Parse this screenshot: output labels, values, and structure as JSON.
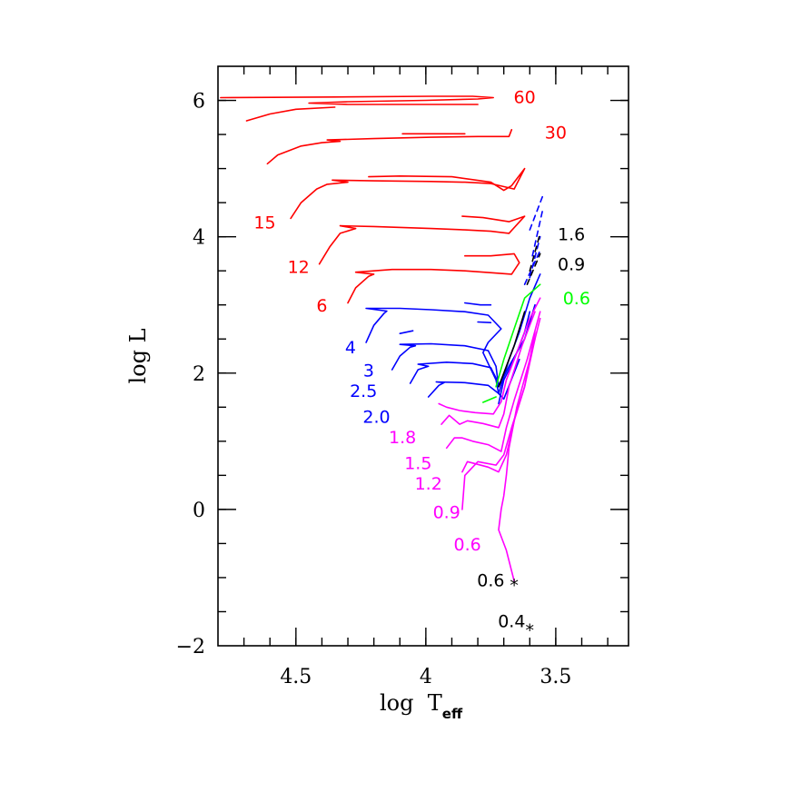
{
  "chart_data": {
    "type": "line",
    "title": "",
    "xlabel": {
      "main": "log  T",
      "sub": "eff"
    },
    "ylabel": "log  L",
    "xlim": [
      4.8,
      3.22
    ],
    "ylim": [
      -2,
      6.5
    ],
    "x_ticks": [
      {
        "value": 4.5,
        "label": "4.5"
      },
      {
        "value": 4.0,
        "label": "4"
      },
      {
        "value": 3.5,
        "label": "3.5"
      }
    ],
    "y_ticks": [
      {
        "value": 6,
        "label": "6"
      },
      {
        "value": 4,
        "label": "4"
      },
      {
        "value": 2,
        "label": "2"
      },
      {
        "value": 0,
        "label": "0"
      },
      {
        "value": -2,
        "label": "−2"
      }
    ],
    "x_minor_step": 0.1,
    "y_minor_step": 0.5,
    "grid": false,
    "colors": {
      "red": "#ff0000",
      "blue": "#0000ff",
      "magenta": "#ff00ff",
      "green": "#00ff00",
      "black": "#000000"
    },
    "series": [
      {
        "color": "red",
        "points": [
          [
            4.79,
            6.04
          ],
          [
            4.35,
            6.05
          ],
          [
            3.98,
            6.06
          ],
          [
            3.82,
            6.06
          ],
          [
            3.74,
            6.04
          ],
          [
            3.8,
            6.02
          ],
          [
            4.0,
            6.0
          ],
          [
            4.3,
            5.98
          ],
          [
            4.45,
            5.96
          ],
          [
            4.3,
            5.94
          ],
          [
            3.98,
            5.94
          ],
          [
            3.8,
            5.94
          ]
        ]
      },
      {
        "color": "red",
        "points": [
          [
            4.69,
            5.7
          ],
          [
            4.6,
            5.8
          ],
          [
            4.5,
            5.87
          ],
          [
            4.35,
            5.9
          ]
        ]
      },
      {
        "color": "red",
        "points": [
          [
            4.61,
            5.07
          ],
          [
            4.57,
            5.2
          ],
          [
            4.48,
            5.33
          ],
          [
            4.4,
            5.38
          ],
          [
            4.33,
            5.4
          ],
          [
            4.38,
            5.42
          ],
          [
            4.2,
            5.44
          ],
          [
            3.98,
            5.46
          ],
          [
            3.8,
            5.47
          ],
          [
            3.68,
            5.47
          ],
          [
            3.67,
            5.57
          ]
        ]
      },
      {
        "color": "red",
        "points": [
          [
            4.09,
            5.51
          ],
          [
            3.92,
            5.51
          ],
          [
            3.85,
            5.51
          ]
        ]
      },
      {
        "color": "red",
        "points": [
          [
            4.52,
            4.27
          ],
          [
            4.48,
            4.5
          ],
          [
            4.42,
            4.7
          ],
          [
            4.38,
            4.77
          ],
          [
            4.3,
            4.8
          ],
          [
            4.36,
            4.83
          ],
          [
            4.2,
            4.82
          ],
          [
            3.98,
            4.81
          ],
          [
            3.85,
            4.8
          ],
          [
            3.75,
            4.78
          ],
          [
            3.66,
            4.7
          ],
          [
            3.62,
            5.0
          ],
          [
            3.67,
            4.75
          ],
          [
            3.7,
            4.68
          ],
          [
            3.75,
            4.8
          ],
          [
            3.9,
            4.88
          ],
          [
            4.1,
            4.89
          ],
          [
            4.22,
            4.88
          ]
        ]
      },
      {
        "color": "red",
        "points": [
          [
            4.41,
            3.6
          ],
          [
            4.37,
            3.85
          ],
          [
            4.33,
            4.05
          ],
          [
            4.27,
            4.12
          ],
          [
            4.33,
            4.16
          ],
          [
            4.2,
            4.15
          ],
          [
            3.98,
            4.12
          ],
          [
            3.85,
            4.1
          ],
          [
            3.75,
            4.08
          ],
          [
            3.68,
            4.05
          ],
          [
            3.62,
            4.3
          ],
          [
            3.68,
            4.22
          ],
          [
            3.78,
            4.28
          ],
          [
            3.86,
            4.3
          ]
        ]
      },
      {
        "color": "red",
        "points": [
          [
            4.3,
            3.03
          ],
          [
            4.27,
            3.25
          ],
          [
            4.22,
            3.42
          ],
          [
            4.2,
            3.45
          ],
          [
            4.27,
            3.48
          ],
          [
            4.13,
            3.52
          ],
          [
            3.98,
            3.52
          ],
          [
            3.85,
            3.5
          ],
          [
            3.74,
            3.47
          ],
          [
            3.67,
            3.45
          ],
          [
            3.64,
            3.62
          ],
          [
            3.66,
            3.75
          ],
          [
            3.75,
            3.72
          ],
          [
            3.85,
            3.72
          ]
        ]
      },
      {
        "color": "blue",
        "points": [
          [
            4.23,
            2.45
          ],
          [
            4.2,
            2.7
          ],
          [
            4.16,
            2.88
          ],
          [
            4.15,
            2.91
          ],
          [
            4.23,
            2.95
          ],
          [
            4.1,
            2.95
          ],
          [
            3.98,
            2.93
          ],
          [
            3.85,
            2.9
          ],
          [
            3.76,
            2.85
          ],
          [
            3.71,
            2.65
          ],
          [
            3.76,
            2.45
          ],
          [
            3.78,
            2.3
          ],
          [
            3.73,
            1.9
          ],
          [
            3.72,
            1.7
          ],
          [
            3.68,
            2.2
          ],
          [
            3.64,
            2.6
          ],
          [
            3.6,
            3.1
          ],
          [
            3.56,
            3.45
          ]
        ]
      },
      {
        "color": "blue",
        "points": [
          [
            3.85,
            3.03
          ],
          [
            3.79,
            3.0
          ],
          [
            3.75,
            3.0
          ]
        ]
      },
      {
        "color": "blue",
        "points": [
          [
            3.8,
            2.75
          ],
          [
            3.75,
            2.74
          ]
        ]
      },
      {
        "color": "blue",
        "points": [
          [
            4.13,
            2.05
          ],
          [
            4.1,
            2.25
          ],
          [
            4.06,
            2.38
          ],
          [
            4.04,
            2.4
          ],
          [
            4.1,
            2.42
          ],
          [
            3.98,
            2.43
          ],
          [
            3.85,
            2.4
          ],
          [
            3.76,
            2.33
          ],
          [
            3.73,
            2.1
          ],
          [
            3.72,
            1.8
          ],
          [
            3.68,
            2.1
          ],
          [
            3.62,
            2.5
          ],
          [
            3.58,
            3.0
          ]
        ]
      },
      {
        "color": "blue",
        "points": [
          [
            4.1,
            2.58
          ],
          [
            4.05,
            2.62
          ]
        ]
      },
      {
        "color": "blue",
        "points": [
          [
            4.06,
            1.85
          ],
          [
            4.03,
            2.05
          ],
          [
            3.99,
            2.1
          ],
          [
            4.03,
            2.13
          ],
          [
            3.92,
            2.16
          ],
          [
            3.82,
            2.14
          ],
          [
            3.75,
            2.08
          ],
          [
            3.72,
            1.85
          ]
        ]
      },
      {
        "color": "blue",
        "points": [
          [
            3.99,
            1.65
          ],
          [
            3.95,
            1.82
          ],
          [
            3.93,
            1.86
          ],
          [
            3.96,
            1.87
          ],
          [
            3.85,
            1.86
          ],
          [
            3.76,
            1.82
          ],
          [
            3.72,
            1.7
          ],
          [
            3.7,
            1.62
          ],
          [
            3.64,
            2.2
          ]
        ]
      },
      {
        "color": "blue",
        "points": [
          [
            3.72,
            1.55
          ],
          [
            3.7,
            1.9
          ],
          [
            3.66,
            2.2
          ],
          [
            3.62,
            2.6
          ],
          [
            3.6,
            2.9
          ]
        ]
      },
      {
        "color": "blue",
        "dash": true,
        "points": [
          [
            3.6,
            4.1
          ],
          [
            3.55,
            4.6
          ]
        ]
      },
      {
        "color": "blue",
        "dash": true,
        "points": [
          [
            3.59,
            3.72
          ],
          [
            3.55,
            4.4
          ]
        ]
      },
      {
        "color": "blue",
        "dash": true,
        "points": [
          [
            3.6,
            3.4
          ],
          [
            3.56,
            4.0
          ]
        ]
      },
      {
        "color": "blue",
        "dash": true,
        "points": [
          [
            3.62,
            3.3
          ],
          [
            3.56,
            3.8
          ]
        ]
      },
      {
        "color": "black",
        "dash": true,
        "points": [
          [
            3.6,
            3.5
          ],
          [
            3.56,
            4.05
          ]
        ]
      },
      {
        "color": "black",
        "dash": true,
        "points": [
          [
            3.61,
            3.3
          ],
          [
            3.56,
            3.75
          ]
        ]
      },
      {
        "color": "black",
        "points": [
          [
            3.72,
            1.8
          ],
          [
            3.66,
            2.4
          ],
          [
            3.62,
            2.9
          ]
        ]
      },
      {
        "color": "green",
        "points": [
          [
            3.73,
            1.8
          ],
          [
            3.7,
            2.2
          ],
          [
            3.66,
            2.65
          ],
          [
            3.62,
            3.1
          ],
          [
            3.56,
            3.3
          ]
        ]
      },
      {
        "color": "green",
        "points": [
          [
            3.78,
            1.57
          ],
          [
            3.73,
            1.65
          ]
        ]
      },
      {
        "color": "magenta",
        "points": [
          [
            3.95,
            1.55
          ],
          [
            3.92,
            1.5
          ],
          [
            3.87,
            1.45
          ],
          [
            3.81,
            1.42
          ],
          [
            3.74,
            1.4
          ],
          [
            3.71,
            1.58
          ],
          [
            3.69,
            1.9
          ],
          [
            3.65,
            2.3
          ],
          [
            3.6,
            2.8
          ],
          [
            3.56,
            3.1
          ]
        ]
      },
      {
        "color": "magenta",
        "points": [
          [
            3.94,
            1.25
          ],
          [
            3.91,
            1.38
          ],
          [
            3.87,
            1.25
          ],
          [
            3.84,
            1.3
          ],
          [
            3.78,
            1.26
          ],
          [
            3.72,
            1.2
          ],
          [
            3.7,
            1.4
          ],
          [
            3.68,
            1.8
          ],
          [
            3.63,
            2.4
          ],
          [
            3.58,
            2.9
          ]
        ]
      },
      {
        "color": "magenta",
        "points": [
          [
            3.92,
            0.9
          ],
          [
            3.89,
            1.05
          ],
          [
            3.86,
            1.05
          ],
          [
            3.82,
            1.0
          ],
          [
            3.76,
            0.95
          ],
          [
            3.71,
            0.85
          ],
          [
            3.69,
            1.2
          ],
          [
            3.66,
            1.6
          ],
          [
            3.61,
            2.2
          ],
          [
            3.56,
            2.9
          ]
        ]
      },
      {
        "color": "magenta",
        "points": [
          [
            3.86,
            0.55
          ],
          [
            3.84,
            0.7
          ],
          [
            3.82,
            0.68
          ],
          [
            3.76,
            0.62
          ],
          [
            3.72,
            0.55
          ],
          [
            3.69,
            0.8
          ],
          [
            3.66,
            1.3
          ],
          [
            3.62,
            1.8
          ],
          [
            3.58,
            2.6
          ]
        ]
      },
      {
        "color": "magenta",
        "points": [
          [
            3.86,
            0.0
          ],
          [
            3.85,
            0.5
          ],
          [
            3.8,
            0.7
          ],
          [
            3.73,
            0.65
          ],
          [
            3.7,
            0.8
          ],
          [
            3.67,
            1.2
          ],
          [
            3.62,
            1.8
          ],
          [
            3.58,
            2.5
          ]
        ]
      },
      {
        "color": "magenta",
        "points": [
          [
            3.66,
            -1.05
          ],
          [
            3.69,
            -0.6
          ],
          [
            3.72,
            -0.3
          ],
          [
            3.71,
            0.0
          ],
          [
            3.7,
            0.2
          ],
          [
            3.69,
            0.5
          ],
          [
            3.68,
            0.9
          ],
          [
            3.65,
            1.5
          ],
          [
            3.6,
            2.2
          ],
          [
            3.56,
            2.8
          ]
        ]
      }
    ],
    "labels": [
      {
        "text": "60",
        "color": "red",
        "x": 3.62,
        "y": 6.04
      },
      {
        "text": "30",
        "color": "red",
        "x": 3.5,
        "y": 5.52
      },
      {
        "text": "15",
        "color": "red",
        "x": 4.62,
        "y": 4.2
      },
      {
        "text": "12",
        "color": "red",
        "x": 4.49,
        "y": 3.55
      },
      {
        "text": "6",
        "color": "red",
        "x": 4.4,
        "y": 2.98
      },
      {
        "text": "4",
        "color": "blue",
        "x": 4.29,
        "y": 2.37
      },
      {
        "text": "3",
        "color": "blue",
        "x": 4.22,
        "y": 2.03
      },
      {
        "text": "2.5",
        "color": "blue",
        "x": 4.24,
        "y": 1.73
      },
      {
        "text": "2.0",
        "color": "blue",
        "x": 4.19,
        "y": 1.35
      },
      {
        "text": "1.8",
        "color": "magenta",
        "x": 4.09,
        "y": 1.05
      },
      {
        "text": "1.5",
        "color": "magenta",
        "x": 4.03,
        "y": 0.67
      },
      {
        "text": "1.2",
        "color": "magenta",
        "x": 3.99,
        "y": 0.37
      },
      {
        "text": "0.9",
        "color": "magenta",
        "x": 3.92,
        "y": -0.05
      },
      {
        "text": "0.6",
        "color": "magenta",
        "x": 3.84,
        "y": -0.52
      },
      {
        "text": "1.6",
        "color": "black",
        "x": 3.44,
        "y": 4.03
      },
      {
        "text": "0.9",
        "color": "black",
        "x": 3.44,
        "y": 3.59
      },
      {
        "text": "0.6",
        "color": "green",
        "x": 3.42,
        "y": 3.09
      },
      {
        "text": "0.6",
        "color": "black",
        "x": 3.75,
        "y": -1.05
      },
      {
        "text": "0.4",
        "color": "black",
        "x": 3.67,
        "y": -1.65
      }
    ],
    "markers": [
      {
        "symbol": "*",
        "color": "black",
        "x": 3.66,
        "y": -1.12
      },
      {
        "symbol": "*",
        "color": "black",
        "x": 3.6,
        "y": -1.78
      }
    ]
  }
}
